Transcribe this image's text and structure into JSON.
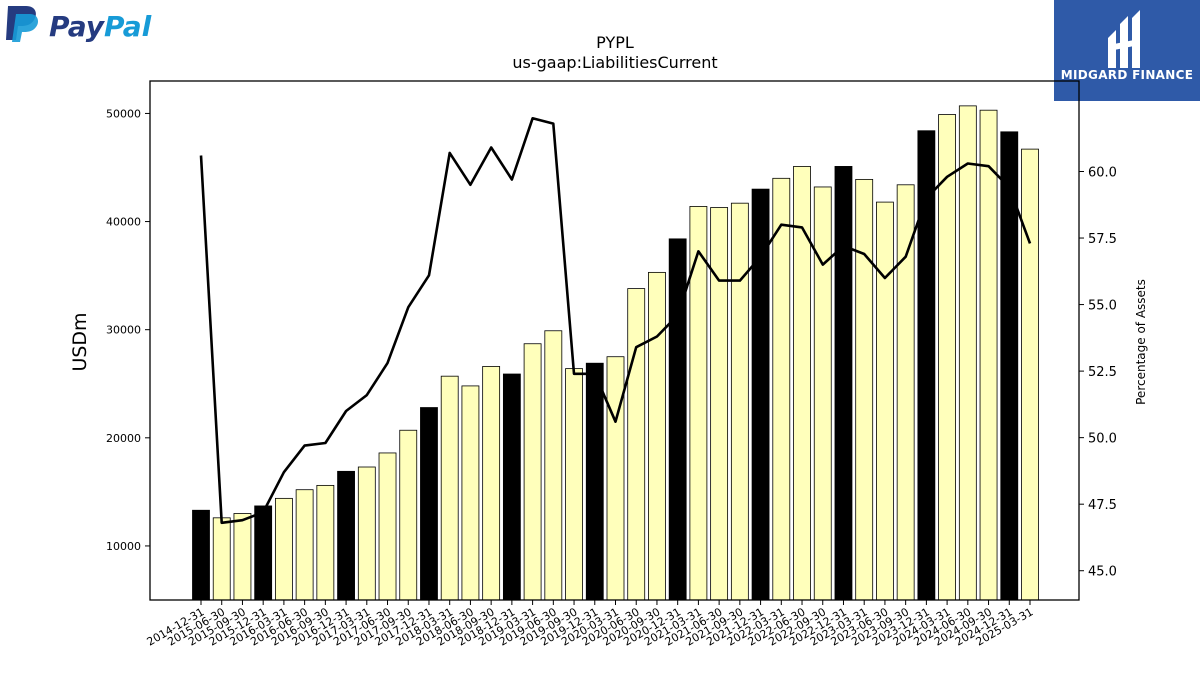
{
  "branding": {
    "company_logo_text_1": "Pay",
    "company_logo_text_2": "Pal",
    "publisher_name": "MIDGARD FINANCE"
  },
  "chart_data": {
    "type": "bar",
    "title": "PYPL",
    "subtitle": "us-gaap:LiabilitiesCurrent",
    "ylabel": "USDm",
    "y2label": "Percentage of Assets",
    "ylim": [
      5000,
      53000
    ],
    "y2lim": [
      43.9,
      63.4
    ],
    "yticks": [
      10000,
      20000,
      30000,
      40000,
      50000
    ],
    "y2ticks": [
      45.0,
      47.5,
      50.0,
      52.5,
      55.0,
      57.5,
      60.0
    ],
    "colors": {
      "annual_bar": "#000000",
      "quarter_bar": "#ffffbb",
      "line": "#000000"
    },
    "categories": [
      "2014-12-31",
      "2015-06-30",
      "2015-09-30",
      "2015-12-31",
      "2016-03-31",
      "2016-06-30",
      "2016-09-30",
      "2016-12-31",
      "2017-03-31",
      "2017-06-30",
      "2017-09-30",
      "2017-12-31",
      "2018-03-31",
      "2018-06-30",
      "2018-09-30",
      "2018-12-31",
      "2019-03-31",
      "2019-06-30",
      "2019-09-30",
      "2019-12-31",
      "2020-03-31",
      "2020-06-30",
      "2020-09-30",
      "2020-12-31",
      "2021-03-31",
      "2021-06-30",
      "2021-09-30",
      "2021-12-31",
      "2022-03-31",
      "2022-06-30",
      "2022-09-30",
      "2022-12-31",
      "2023-03-31",
      "2023-06-30",
      "2023-09-30",
      "2023-12-31",
      "2024-03-31",
      "2024-06-30",
      "2024-09-30",
      "2024-12-31",
      "2025-03-31"
    ],
    "series": [
      {
        "type": "bar",
        "values": [
          13300,
          12600,
          13000,
          13700,
          14400,
          15200,
          15600,
          16900,
          17300,
          18600,
          20700,
          22800,
          25700,
          24800,
          26600,
          25900,
          28700,
          29900,
          26400,
          26900,
          27500,
          33800,
          35300,
          38400,
          41400,
          41300,
          41700,
          43000,
          44000,
          45100,
          43200,
          45100,
          43900,
          41800,
          43400,
          48400,
          49900,
          50700,
          50300,
          48300,
          46700
        ],
        "annual_flags": [
          true,
          false,
          false,
          true,
          false,
          false,
          false,
          true,
          false,
          false,
          false,
          true,
          false,
          false,
          false,
          true,
          false,
          false,
          false,
          true,
          false,
          false,
          false,
          true,
          false,
          false,
          false,
          true,
          false,
          false,
          false,
          true,
          false,
          false,
          false,
          true,
          false,
          false,
          false,
          true,
          false
        ]
      },
      {
        "type": "line",
        "axis": "right",
        "values": [
          60.6,
          46.8,
          46.9,
          47.2,
          48.7,
          49.7,
          49.8,
          51.0,
          51.6,
          52.8,
          54.9,
          56.1,
          60.7,
          59.5,
          60.9,
          59.7,
          62.0,
          61.8,
          52.4,
          52.4,
          50.6,
          53.4,
          53.8,
          54.6,
          57.0,
          55.9,
          55.9,
          56.8,
          58.0,
          57.9,
          56.5,
          57.2,
          56.9,
          56.0,
          56.8,
          59.0,
          59.8,
          60.3,
          60.2,
          59.4,
          57.3
        ]
      }
    ]
  }
}
